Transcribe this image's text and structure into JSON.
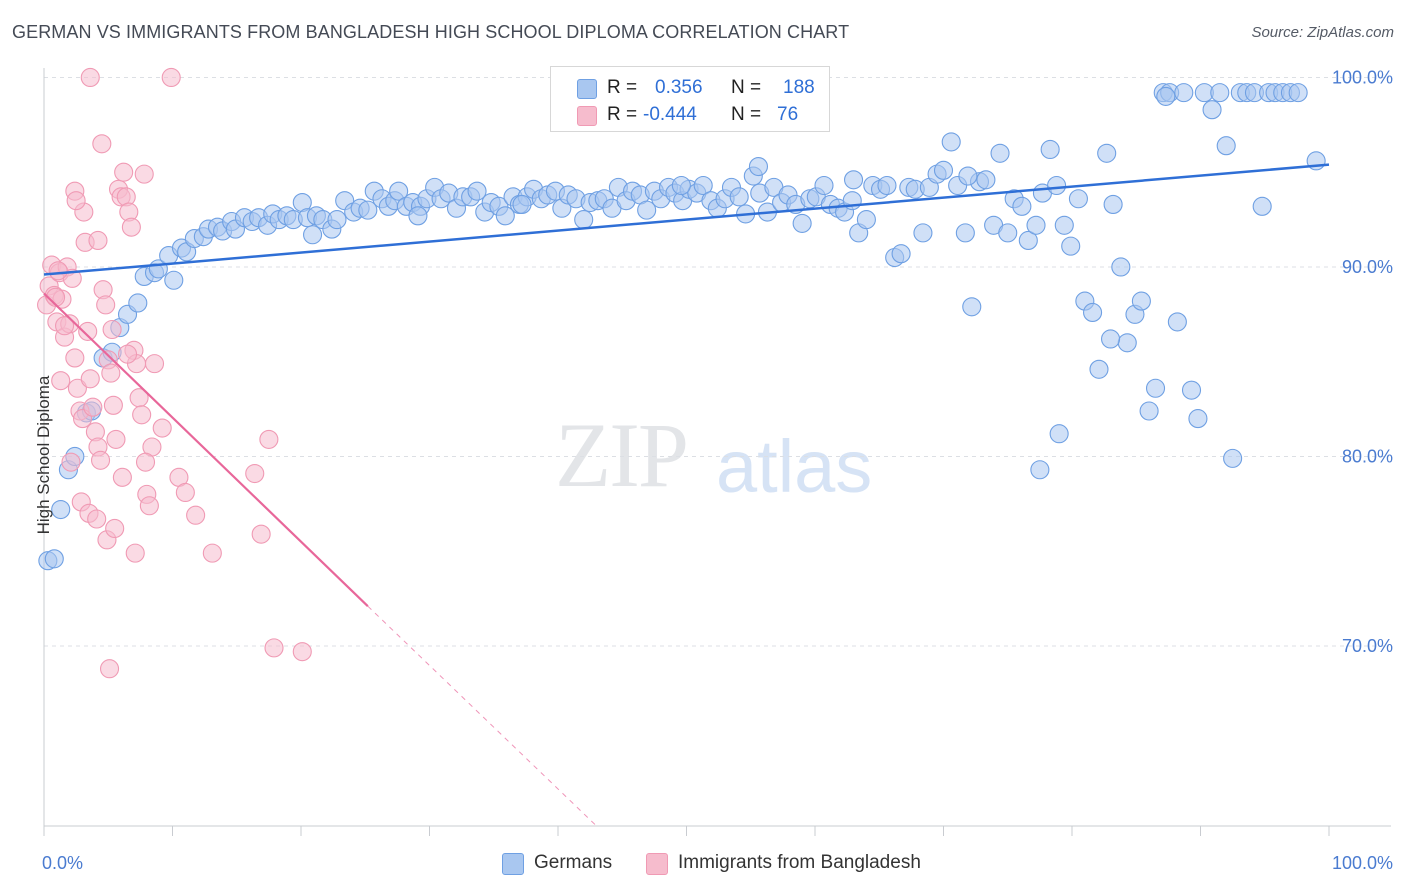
{
  "title": "GERMAN VS IMMIGRANTS FROM BANGLADESH HIGH SCHOOL DIPLOMA CORRELATION CHART",
  "source": "Source: ZipAtlas.com",
  "watermark": {
    "zip": "ZIP",
    "atlas": "atlas"
  },
  "legend": {
    "rows": [
      {
        "r_label": "R =",
        "r_value": "0.356",
        "n_label": "N =",
        "n_value": "188",
        "color": "#a9c7f0"
      },
      {
        "r_label": "R =",
        "r_value": "-0.444",
        "n_label": "N =",
        "n_value": "76",
        "color": "#f6bccd"
      }
    ]
  },
  "bottom_legend": [
    {
      "label": "Germans",
      "color": "#a9c7f0"
    },
    {
      "label": "Immigrants from Bangladesh",
      "color": "#f6bccd"
    }
  ],
  "chart_data": {
    "type": "scatter",
    "title": "GERMAN VS IMMIGRANTS FROM BANGLADESH HIGH SCHOOL DIPLOMA CORRELATION CHART",
    "xlabel": "",
    "ylabel": "High School Diploma",
    "xlim": [
      0,
      100
    ],
    "ylim": [
      60.5,
      100.5
    ],
    "x_tick_labels": [
      "0.0%",
      "100.0%"
    ],
    "y_ticks": [
      70,
      80,
      90,
      100
    ],
    "y_tick_labels": [
      "70.0%",
      "80.0%",
      "90.0%",
      "100.0%"
    ],
    "series": [
      {
        "name": "Germans",
        "color": "#6fa0e3",
        "fill": "#a9c7f0",
        "trend": {
          "x0": 0,
          "y0": 89.6,
          "x1": 100,
          "y1": 95.4,
          "color": "#2f6fd6"
        },
        "points": [
          [
            0.3,
            74.5
          ],
          [
            0.8,
            74.6
          ],
          [
            1.3,
            77.2
          ],
          [
            1.9,
            79.3
          ],
          [
            2.4,
            80.0
          ],
          [
            3.3,
            82.3
          ],
          [
            3.7,
            82.4
          ],
          [
            4.6,
            85.2
          ],
          [
            5.3,
            85.5
          ],
          [
            5.9,
            86.8
          ],
          [
            6.5,
            87.5
          ],
          [
            7.3,
            88.1
          ],
          [
            7.8,
            89.5
          ],
          [
            8.6,
            89.7
          ],
          [
            8.9,
            89.9
          ],
          [
            9.7,
            90.6
          ],
          [
            10.1,
            89.3
          ],
          [
            10.7,
            91.0
          ],
          [
            11.1,
            90.8
          ],
          [
            11.7,
            91.5
          ],
          [
            12.4,
            91.6
          ],
          [
            12.8,
            92.0
          ],
          [
            13.5,
            92.1
          ],
          [
            13.9,
            91.9
          ],
          [
            14.6,
            92.4
          ],
          [
            14.9,
            92.0
          ],
          [
            15.6,
            92.6
          ],
          [
            16.2,
            92.4
          ],
          [
            16.7,
            92.6
          ],
          [
            17.4,
            92.2
          ],
          [
            17.8,
            92.8
          ],
          [
            18.3,
            92.5
          ],
          [
            18.9,
            92.7
          ],
          [
            19.4,
            92.5
          ],
          [
            20.1,
            93.4
          ],
          [
            20.5,
            92.6
          ],
          [
            21.2,
            92.7
          ],
          [
            21.7,
            92.5
          ],
          [
            22.4,
            92.0
          ],
          [
            22.8,
            92.5
          ],
          [
            23.4,
            93.5
          ],
          [
            24.1,
            92.9
          ],
          [
            24.6,
            93.1
          ],
          [
            25.2,
            93.0
          ],
          [
            25.7,
            94.0
          ],
          [
            26.3,
            93.6
          ],
          [
            26.8,
            93.2
          ],
          [
            27.3,
            93.5
          ],
          [
            27.6,
            94.0
          ],
          [
            28.2,
            93.2
          ],
          [
            28.7,
            93.4
          ],
          [
            29.3,
            93.2
          ],
          [
            29.8,
            93.6
          ],
          [
            30.4,
            94.2
          ],
          [
            30.9,
            93.6
          ],
          [
            31.5,
            93.9
          ],
          [
            32.1,
            93.1
          ],
          [
            32.6,
            93.7
          ],
          [
            33.2,
            93.7
          ],
          [
            33.7,
            94.0
          ],
          [
            34.3,
            92.9
          ],
          [
            34.8,
            93.4
          ],
          [
            35.4,
            93.2
          ],
          [
            35.9,
            92.7
          ],
          [
            36.5,
            93.7
          ],
          [
            37.0,
            93.3
          ],
          [
            37.6,
            93.7
          ],
          [
            38.1,
            94.1
          ],
          [
            38.7,
            93.6
          ],
          [
            39.2,
            93.8
          ],
          [
            39.8,
            94.0
          ],
          [
            40.3,
            93.1
          ],
          [
            40.8,
            93.8
          ],
          [
            41.4,
            93.6
          ],
          [
            42.0,
            92.5
          ],
          [
            42.5,
            93.4
          ],
          [
            43.1,
            93.5
          ],
          [
            43.6,
            93.6
          ],
          [
            44.2,
            93.1
          ],
          [
            44.7,
            94.2
          ],
          [
            45.3,
            93.5
          ],
          [
            45.8,
            94.0
          ],
          [
            46.4,
            93.8
          ],
          [
            46.9,
            93.0
          ],
          [
            47.5,
            94.0
          ],
          [
            48.0,
            93.6
          ],
          [
            48.6,
            94.2
          ],
          [
            49.1,
            93.9
          ],
          [
            49.7,
            93.5
          ],
          [
            50.2,
            94.1
          ],
          [
            50.8,
            93.9
          ],
          [
            51.3,
            94.3
          ],
          [
            51.9,
            93.5
          ],
          [
            52.4,
            93.1
          ],
          [
            53.0,
            93.6
          ],
          [
            53.5,
            94.2
          ],
          [
            54.1,
            93.7
          ],
          [
            54.6,
            92.8
          ],
          [
            55.2,
            94.8
          ],
          [
            55.7,
            93.9
          ],
          [
            56.3,
            92.9
          ],
          [
            56.8,
            94.2
          ],
          [
            57.4,
            93.4
          ],
          [
            57.9,
            93.8
          ],
          [
            58.5,
            93.3
          ],
          [
            59.0,
            92.3
          ],
          [
            59.6,
            93.6
          ],
          [
            60.1,
            93.7
          ],
          [
            60.7,
            94.3
          ],
          [
            61.2,
            93.3
          ],
          [
            61.8,
            93.1
          ],
          [
            62.3,
            92.9
          ],
          [
            62.9,
            93.5
          ],
          [
            63.4,
            91.8
          ],
          [
            64.0,
            92.5
          ],
          [
            64.5,
            94.3
          ],
          [
            65.1,
            94.1
          ],
          [
            65.6,
            94.3
          ],
          [
            66.2,
            90.5
          ],
          [
            66.7,
            90.7
          ],
          [
            67.3,
            94.2
          ],
          [
            67.8,
            94.1
          ],
          [
            68.4,
            91.8
          ],
          [
            68.9,
            94.2
          ],
          [
            69.5,
            94.9
          ],
          [
            70.0,
            95.1
          ],
          [
            70.6,
            96.6
          ],
          [
            71.1,
            94.3
          ],
          [
            71.7,
            91.8
          ],
          [
            72.2,
            87.9
          ],
          [
            72.8,
            94.5
          ],
          [
            73.3,
            94.6
          ],
          [
            73.9,
            92.2
          ],
          [
            74.4,
            96.0
          ],
          [
            75.0,
            91.8
          ],
          [
            75.5,
            93.6
          ],
          [
            76.1,
            93.2
          ],
          [
            76.6,
            91.4
          ],
          [
            77.2,
            92.2
          ],
          [
            77.7,
            93.9
          ],
          [
            78.3,
            96.2
          ],
          [
            78.8,
            94.3
          ],
          [
            79.4,
            92.2
          ],
          [
            79.9,
            91.1
          ],
          [
            80.5,
            93.6
          ],
          [
            81.0,
            88.2
          ],
          [
            81.6,
            87.6
          ],
          [
            82.1,
            84.6
          ],
          [
            82.7,
            96.0
          ],
          [
            83.2,
            93.3
          ],
          [
            83.8,
            90.0
          ],
          [
            84.3,
            86.0
          ],
          [
            84.9,
            87.5
          ],
          [
            85.4,
            88.2
          ],
          [
            86.0,
            82.4
          ],
          [
            86.5,
            83.6
          ],
          [
            87.1,
            99.2
          ],
          [
            87.6,
            99.2
          ],
          [
            88.2,
            87.1
          ],
          [
            88.7,
            99.2
          ],
          [
            89.3,
            83.5
          ],
          [
            89.8,
            82.0
          ],
          [
            90.3,
            99.2
          ],
          [
            90.9,
            98.3
          ],
          [
            91.5,
            99.2
          ],
          [
            92.0,
            96.4
          ],
          [
            92.5,
            79.9
          ],
          [
            93.1,
            99.2
          ],
          [
            93.6,
            99.2
          ],
          [
            94.2,
            99.2
          ],
          [
            94.8,
            93.2
          ],
          [
            95.3,
            99.2
          ],
          [
            95.8,
            99.2
          ],
          [
            96.4,
            99.2
          ],
          [
            97.0,
            99.2
          ],
          [
            77.5,
            79.3
          ],
          [
            79.0,
            81.2
          ],
          [
            83.0,
            86.2
          ],
          [
            87.3,
            99.0
          ],
          [
            97.6,
            99.2
          ],
          [
            99.0,
            95.6
          ],
          [
            71.9,
            94.8
          ],
          [
            55.6,
            95.3
          ],
          [
            49.6,
            94.3
          ],
          [
            63.0,
            94.6
          ],
          [
            37.2,
            93.3
          ],
          [
            29.1,
            92.7
          ],
          [
            20.9,
            91.7
          ]
        ]
      },
      {
        "name": "Immigrants from Bangladesh",
        "color": "#f09ab4",
        "fill": "#f6bccd",
        "trend": {
          "x0": 0,
          "y0": 88.6,
          "x1": 25.2,
          "y1": 72.1,
          "color": "#e8679a",
          "dash_x1": 43.0,
          "dash_y1": 60.5
        },
        "points": [
          [
            0.2,
            88.0
          ],
          [
            0.4,
            89.0
          ],
          [
            0.6,
            90.1
          ],
          [
            0.8,
            88.5
          ],
          [
            1.0,
            87.1
          ],
          [
            1.2,
            89.7
          ],
          [
            1.4,
            88.3
          ],
          [
            1.6,
            86.3
          ],
          [
            1.8,
            90.0
          ],
          [
            2.0,
            87.0
          ],
          [
            2.2,
            89.4
          ],
          [
            2.4,
            85.2
          ],
          [
            2.6,
            83.6
          ],
          [
            2.8,
            82.4
          ],
          [
            3.0,
            82.0
          ],
          [
            3.2,
            91.3
          ],
          [
            3.4,
            86.6
          ],
          [
            3.6,
            84.1
          ],
          [
            3.8,
            82.6
          ],
          [
            4.0,
            81.3
          ],
          [
            4.2,
            80.5
          ],
          [
            4.4,
            79.8
          ],
          [
            4.6,
            88.8
          ],
          [
            4.8,
            88.0
          ],
          [
            5.0,
            85.1
          ],
          [
            5.2,
            84.4
          ],
          [
            5.4,
            82.7
          ],
          [
            5.6,
            80.9
          ],
          [
            5.8,
            94.1
          ],
          [
            6.0,
            93.7
          ],
          [
            6.2,
            95.0
          ],
          [
            6.4,
            93.7
          ],
          [
            6.6,
            92.9
          ],
          [
            6.8,
            92.1
          ],
          [
            7.0,
            85.6
          ],
          [
            7.2,
            84.9
          ],
          [
            7.4,
            83.1
          ],
          [
            7.6,
            82.2
          ],
          [
            7.8,
            94.9
          ],
          [
            8.0,
            78.0
          ],
          [
            8.2,
            77.4
          ],
          [
            8.4,
            80.5
          ],
          [
            1.3,
            84.0
          ],
          [
            2.1,
            79.7
          ],
          [
            2.9,
            77.6
          ],
          [
            3.5,
            77.0
          ],
          [
            4.1,
            76.7
          ],
          [
            4.9,
            75.6
          ],
          [
            5.5,
            76.2
          ],
          [
            6.1,
            78.9
          ],
          [
            7.1,
            74.9
          ],
          [
            10.5,
            78.9
          ],
          [
            11.0,
            78.1
          ],
          [
            11.8,
            76.9
          ],
          [
            13.1,
            74.9
          ],
          [
            16.4,
            79.1
          ],
          [
            16.9,
            75.9
          ],
          [
            17.5,
            80.9
          ],
          [
            17.9,
            69.9
          ],
          [
            20.1,
            69.7
          ],
          [
            5.1,
            68.8
          ],
          [
            4.5,
            96.5
          ],
          [
            3.6,
            100.0
          ],
          [
            9.9,
            100.0
          ],
          [
            2.4,
            94.0
          ],
          [
            3.1,
            92.9
          ],
          [
            4.2,
            91.4
          ],
          [
            1.6,
            86.9
          ],
          [
            0.9,
            88.4
          ],
          [
            1.1,
            89.8
          ],
          [
            2.5,
            93.5
          ],
          [
            8.6,
            84.9
          ],
          [
            9.2,
            81.5
          ],
          [
            7.9,
            79.7
          ],
          [
            6.5,
            85.4
          ],
          [
            5.3,
            86.7
          ]
        ]
      }
    ]
  }
}
